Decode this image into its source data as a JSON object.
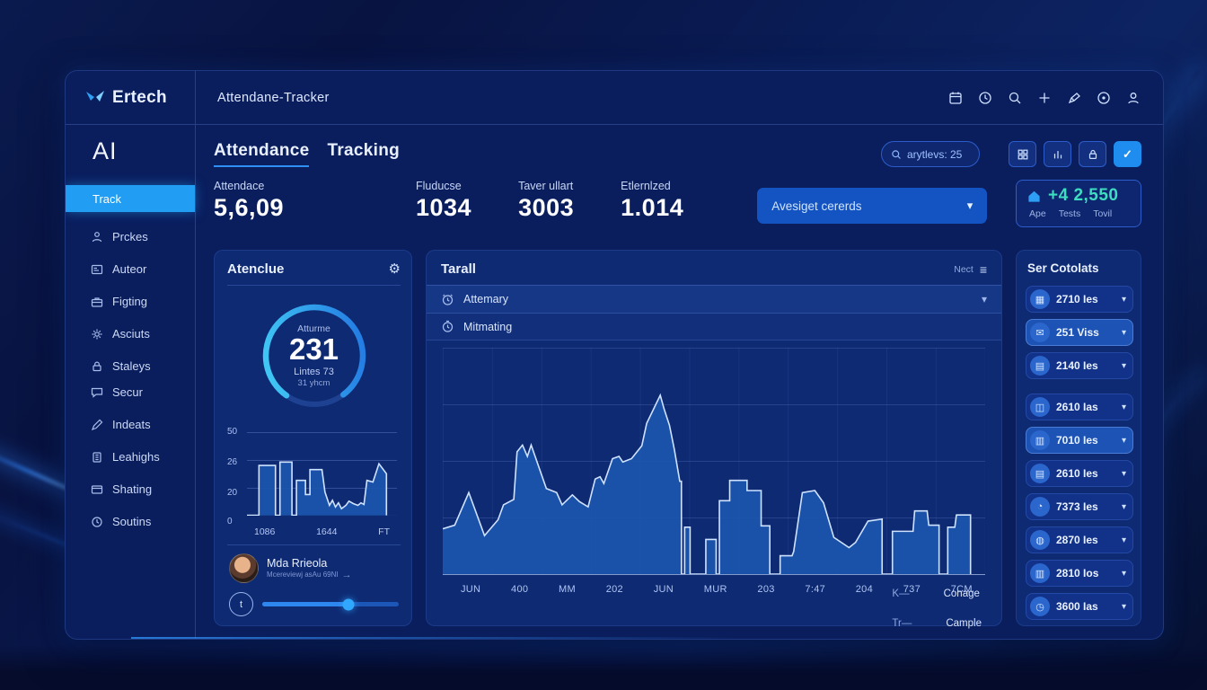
{
  "chrome": {
    "brand": "Ertech",
    "app_title": "Attendane-Tracker"
  },
  "sidebar": {
    "section_label": "AI",
    "active_label": "Track",
    "items": [
      {
        "icon": "person-icon",
        "label": "Prckes"
      },
      {
        "icon": "idcard-icon",
        "label": "Auteor"
      },
      {
        "icon": "briefcase-icon",
        "label": "Figting"
      },
      {
        "icon": "gear-icon",
        "label": "Asciuts"
      },
      {
        "icon": "lock-icon",
        "label": "Staleys"
      },
      {
        "icon": "chat-icon",
        "label": "Secur"
      },
      {
        "icon": "pen-icon",
        "label": "Indeats"
      },
      {
        "icon": "building-icon",
        "label": "Leahighs"
      },
      {
        "icon": "card-icon",
        "label": "Shating"
      },
      {
        "icon": "clock-icon",
        "label": "Soutins"
      }
    ]
  },
  "page": {
    "title_primary": "Attendance",
    "title_secondary": "Tracking",
    "search_value": "arytlevs: 25",
    "stats": [
      {
        "label": "Attendace",
        "value": "5,6,09"
      },
      {
        "label": "Fluducse",
        "value": "1034"
      },
      {
        "label": "Taver ullart",
        "value": "3003"
      },
      {
        "label": "Etlernlzed",
        "value": "1.014"
      }
    ],
    "filter_value": "Avesiget cererds",
    "summary_card": {
      "value": "+4 2,550",
      "labels": [
        "Ape",
        "Tests",
        "Tovil"
      ]
    }
  },
  "attendance_panel": {
    "title": "Atenclue",
    "donut": {
      "label": "Atturme",
      "value": "231",
      "sub1": "Lintes 73",
      "sub2": "31 yhcm",
      "percent": 80
    },
    "user": {
      "name": "Mda Rrieola",
      "subtitle": "Mcereviewj asAu 69NI",
      "arrow": "→"
    },
    "slider_percent": 63
  },
  "main_panel": {
    "title": "Tarall",
    "menu_label": "Nect",
    "rows": [
      {
        "icon": "alarm-icon",
        "label": "Attemary"
      },
      {
        "icon": "timer-icon",
        "label": "Mitmating"
      }
    ],
    "legend": [
      {
        "key": "K—",
        "label": "Conage"
      },
      {
        "key": "Tr—",
        "label": "Cample"
      }
    ]
  },
  "contacts_panel": {
    "title": "Ser Cotolats",
    "items": [
      {
        "icon": "calendar-icon",
        "glyph": "▦",
        "label": "2710 Ies",
        "highlight": false
      },
      {
        "icon": "mail-icon",
        "glyph": "✉",
        "label": "251 Viss",
        "highlight": true
      },
      {
        "icon": "list-icon",
        "glyph": "▤",
        "label": "2140 Ies",
        "highlight": false
      },
      {
        "icon": "monitor-icon",
        "glyph": "◫",
        "label": "2610 Ias",
        "highlight": false
      },
      {
        "icon": "clipboard-icon",
        "glyph": "▥",
        "label": "7010 Ies",
        "highlight": true
      },
      {
        "icon": "list-icon",
        "glyph": "▤",
        "label": "2610 Ies",
        "highlight": false
      },
      {
        "icon": "gauge-icon",
        "glyph": "◔",
        "label": "7373 Ies",
        "highlight": false
      },
      {
        "icon": "disc-icon",
        "glyph": "◍",
        "label": "2870 Ies",
        "highlight": false
      },
      {
        "icon": "clipboard-icon",
        "glyph": "▥",
        "label": "2810 Ios",
        "highlight": false
      },
      {
        "icon": "clock-icon",
        "glyph": "◷",
        "label": "3600 Ias",
        "highlight": false
      }
    ]
  },
  "chart_data": [
    {
      "id": "attendance-mini",
      "type": "area",
      "y_ticks": [
        "50",
        "26",
        "20",
        "0"
      ],
      "x_ticks": [
        "1086",
        "1644",
        "FT"
      ],
      "ylim": [
        0,
        50
      ],
      "points": [
        [
          0,
          0
        ],
        [
          8,
          0
        ],
        [
          8,
          60
        ],
        [
          19,
          60
        ],
        [
          19,
          0
        ],
        [
          22,
          0
        ],
        [
          22,
          64
        ],
        [
          30,
          64
        ],
        [
          30,
          0
        ],
        [
          33,
          0
        ],
        [
          33,
          42
        ],
        [
          39,
          42
        ],
        [
          39,
          25
        ],
        [
          42,
          25
        ],
        [
          42,
          55
        ],
        [
          50,
          55
        ],
        [
          52,
          28
        ],
        [
          55,
          12
        ],
        [
          57,
          18
        ],
        [
          59,
          10
        ],
        [
          61,
          15
        ],
        [
          63,
          8
        ],
        [
          66,
          12
        ],
        [
          68,
          17
        ],
        [
          71,
          14
        ],
        [
          74,
          12
        ],
        [
          76,
          15
        ],
        [
          78,
          13
        ],
        [
          80,
          42
        ],
        [
          84,
          40
        ],
        [
          88,
          62
        ],
        [
          93,
          50
        ],
        [
          93,
          0
        ]
      ]
    },
    {
      "id": "tarall-main",
      "type": "area",
      "title": "Tarall",
      "x_ticks": [
        "JUN",
        "400",
        "MM",
        "202",
        "JUN",
        "MUR",
        "203",
        "7:47",
        "204",
        "737",
        "7CM"
      ],
      "points": [
        [
          0,
          20
        ],
        [
          2.2,
          21.6
        ],
        [
          4.8,
          36
        ],
        [
          7.7,
          17
        ],
        [
          10.2,
          24
        ],
        [
          11.2,
          30.6
        ],
        [
          13.1,
          33
        ],
        [
          13.7,
          54
        ],
        [
          14.7,
          57
        ],
        [
          15.6,
          52
        ],
        [
          16.3,
          57
        ],
        [
          19.1,
          37.8
        ],
        [
          21,
          36
        ],
        [
          22,
          30.6
        ],
        [
          23.9,
          35
        ],
        [
          25.2,
          32
        ],
        [
          26.8,
          29.7
        ],
        [
          28.1,
          42
        ],
        [
          29,
          43
        ],
        [
          29.7,
          40
        ],
        [
          31.3,
          51
        ],
        [
          32.5,
          52
        ],
        [
          33.2,
          49.5
        ],
        [
          34.8,
          51
        ],
        [
          36.7,
          56.7
        ],
        [
          37.6,
          66.6
        ],
        [
          40.1,
          79
        ],
        [
          40.8,
          73
        ],
        [
          41.8,
          65.7
        ],
        [
          42.7,
          55
        ],
        [
          43.7,
          41
        ],
        [
          44,
          41
        ],
        [
          44,
          0
        ],
        [
          44.6,
          0
        ],
        [
          44.6,
          20.7
        ],
        [
          45.6,
          20.7
        ],
        [
          45.6,
          0
        ],
        [
          48.5,
          0
        ],
        [
          48.5,
          15.3
        ],
        [
          50.4,
          15.3
        ],
        [
          50.4,
          0
        ],
        [
          51,
          0
        ],
        [
          51,
          32.4
        ],
        [
          52.9,
          32.4
        ],
        [
          52.9,
          41.4
        ],
        [
          56.1,
          41.4
        ],
        [
          56.1,
          36.9
        ],
        [
          58.7,
          36.9
        ],
        [
          58.7,
          21.3
        ],
        [
          60.3,
          21.3
        ],
        [
          60.3,
          0
        ],
        [
          62.2,
          0
        ],
        [
          62.2,
          8.1
        ],
        [
          64.4,
          8.1
        ],
        [
          64.7,
          10
        ],
        [
          66.3,
          36
        ],
        [
          68.6,
          36.9
        ],
        [
          70.2,
          31.5
        ],
        [
          72.1,
          16.2
        ],
        [
          74.9,
          11.7
        ],
        [
          76.1,
          14
        ],
        [
          78.4,
          23.4
        ],
        [
          81,
          24.3
        ],
        [
          81,
          0
        ],
        [
          82.9,
          0
        ],
        [
          82.9,
          18.9
        ],
        [
          86.7,
          18.9
        ],
        [
          87,
          27.9
        ],
        [
          89.3,
          27.9
        ],
        [
          89.6,
          21.6
        ],
        [
          91.5,
          21.6
        ],
        [
          91.5,
          0
        ],
        [
          93.1,
          0
        ],
        [
          93.1,
          20.7
        ],
        [
          94.4,
          20.7
        ],
        [
          94.7,
          26.1
        ],
        [
          97.3,
          26.1
        ],
        [
          97.3,
          0
        ]
      ]
    }
  ]
}
